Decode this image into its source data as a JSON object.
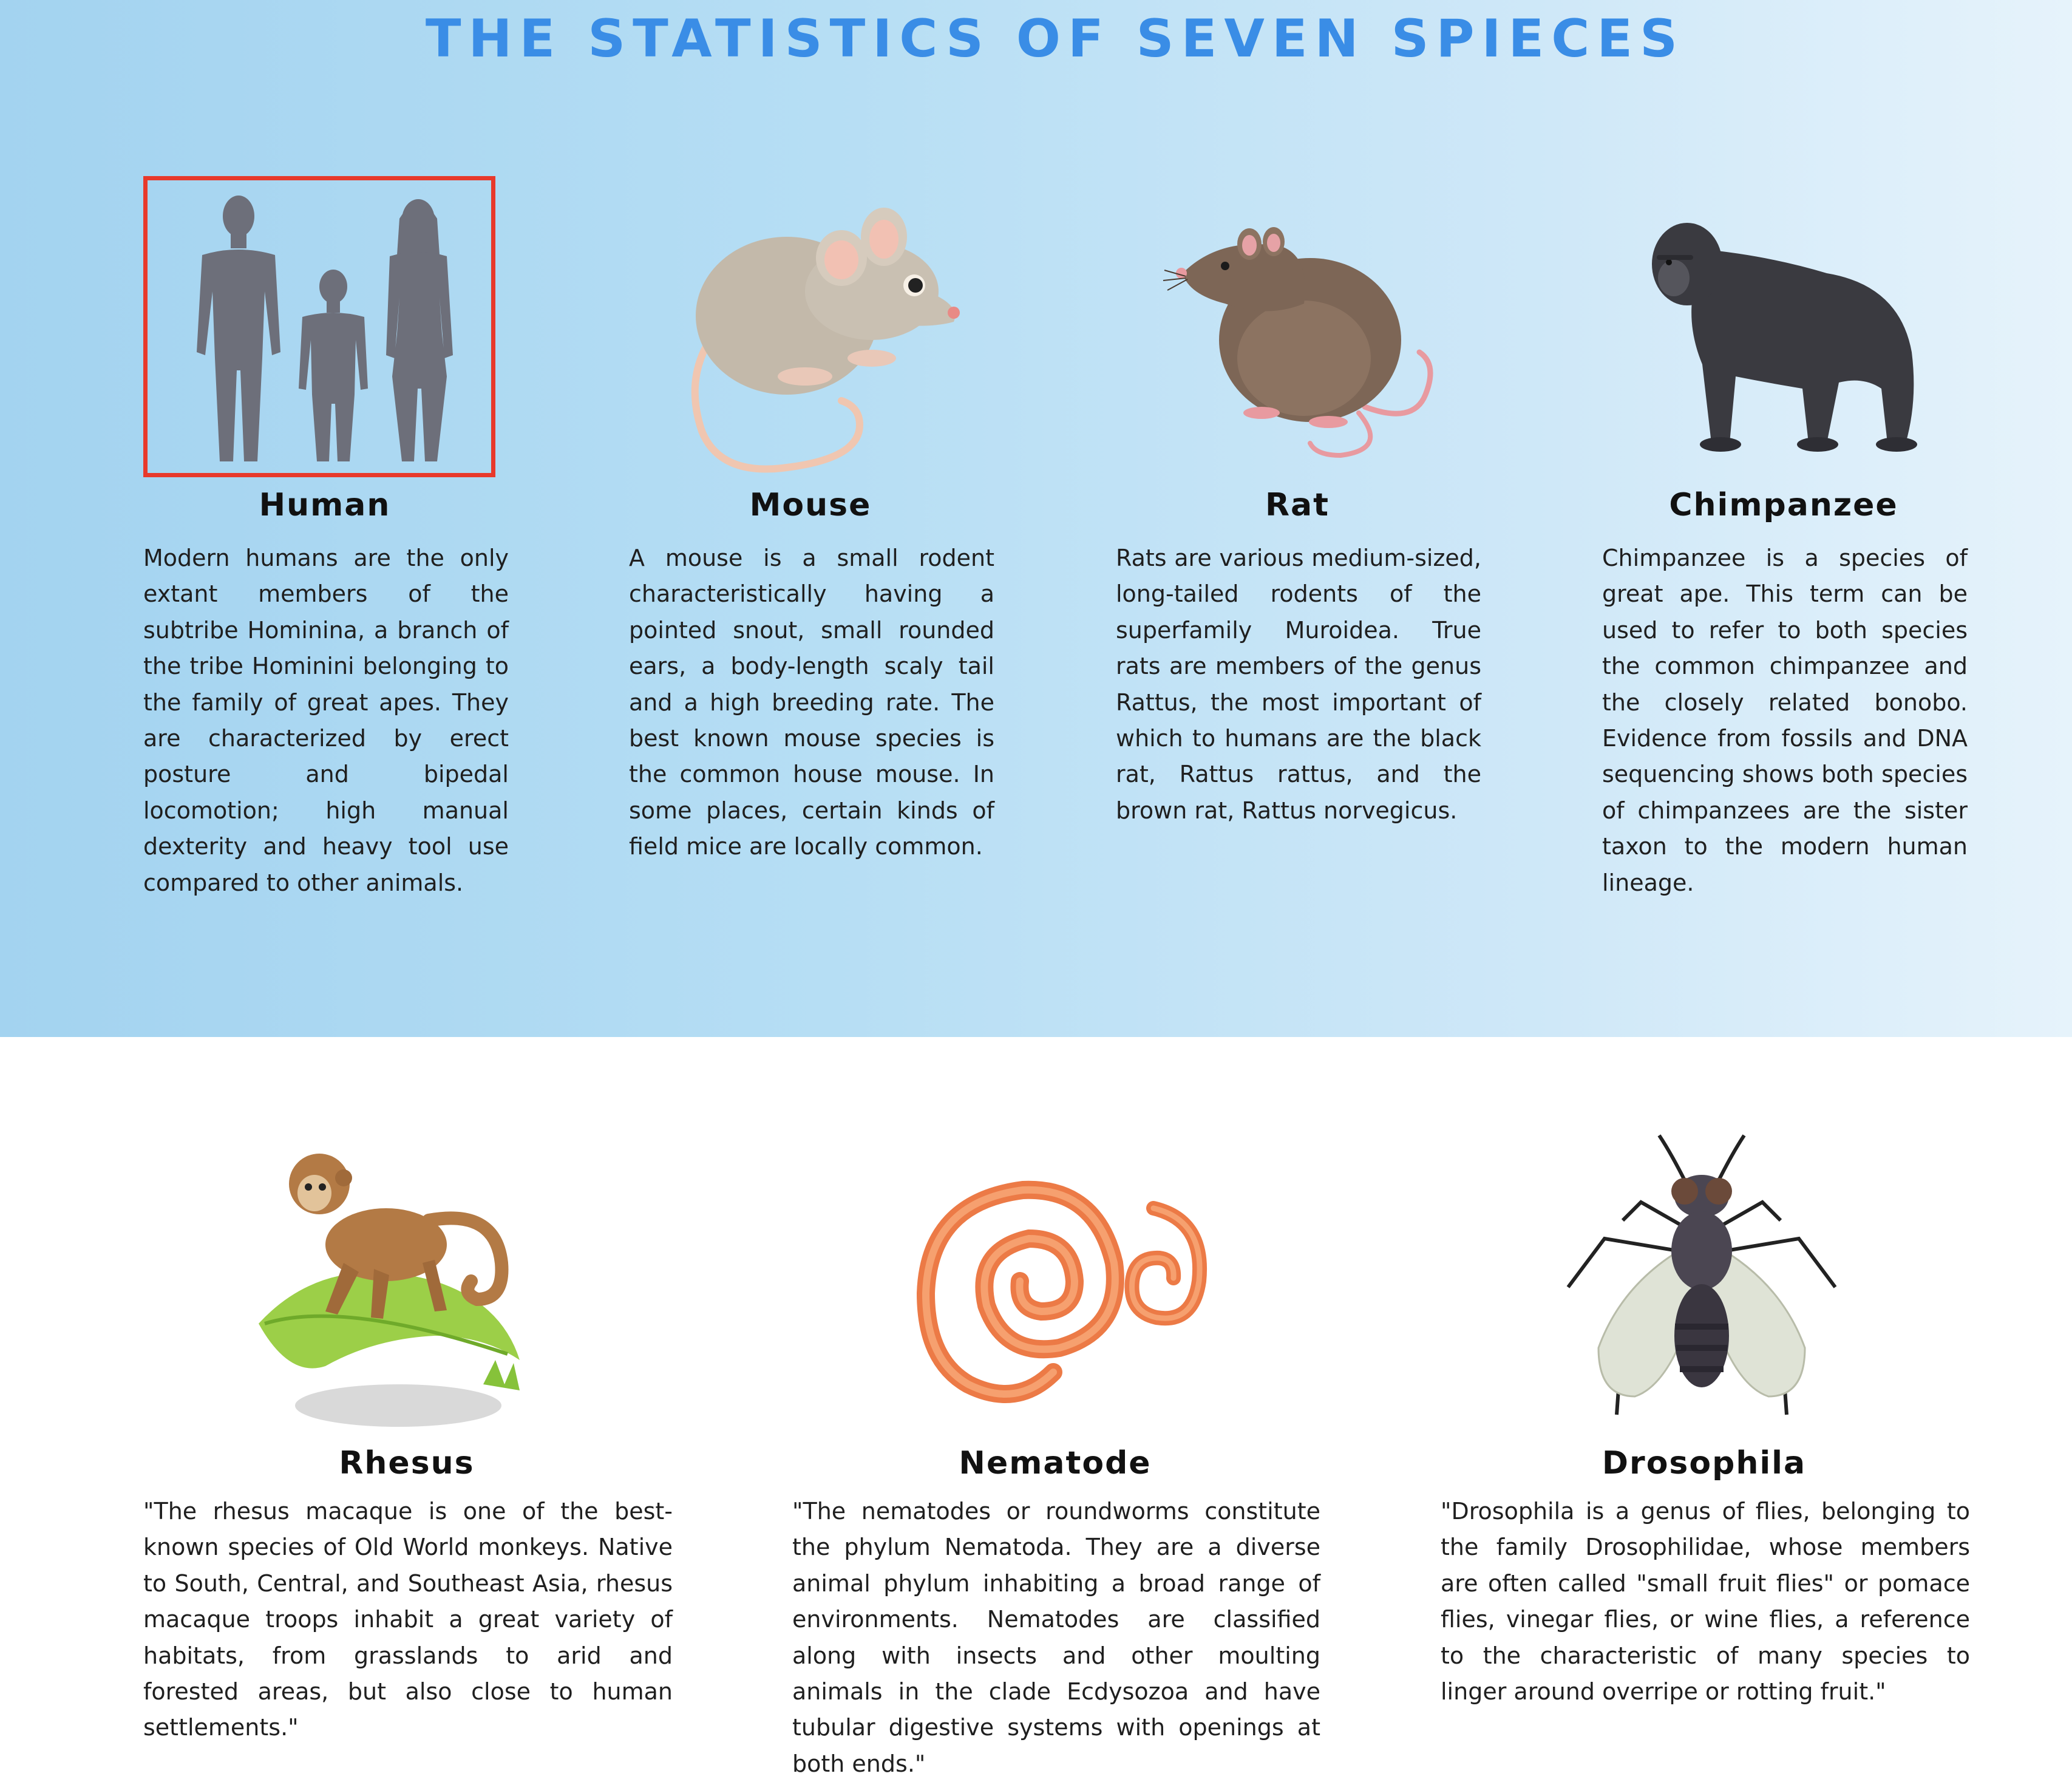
{
  "title": "THE STATISTICS OF SEVEN SPIECES",
  "colors": {
    "title": "#3a8de6",
    "highlight": "#e8392b",
    "band_left": "#a3d3f0",
    "band_right": "#e6f3fb"
  },
  "species": [
    {
      "name": "Human",
      "icon": "human-silhouettes-icon",
      "description": "Modern humans are the only extant members of the subtribe Hominina, a branch of the tribe Hominini belonging to the family of great apes. They are characterized by erect posture and bipedal locomotion; high manual dexterity and heavy tool use compared to other animals.",
      "selected": true
    },
    {
      "name": "Mouse",
      "icon": "mouse-icon",
      "description": "A mouse is a small rodent characteristically having a pointed snout, small rounded ears, a body-length scaly tail and a high breeding rate. The best known mouse species is the common house mouse. In some places, certain kinds of field mice are locally common."
    },
    {
      "name": "Rat",
      "icon": "rat-icon",
      "description": "Rats are various medium-sized, long-tailed rodents of the superfamily Muroidea. True rats are members of the genus Rattus, the most important of which to humans are the black rat, Rattus rattus, and the brown rat, Rattus norvegicus."
    },
    {
      "name": "Chimpanzee",
      "icon": "chimpanzee-icon",
      "description": "Chimpanzee is a species of great ape. This term can be used to refer to both species the common chimpanzee and the closely related bonobo. Evidence from fossils and DNA sequencing shows both species of chimpanzees are the sister taxon to the modern human lineage."
    },
    {
      "name": "Rhesus",
      "icon": "rhesus-monkey-icon",
      "description": "\"The rhesus macaque is one of the best-known species of Old World monkeys. Native to South, Central, and Southeast Asia, rhesus macaque troops inhabit a great variety of habitats, from grasslands to arid and forested areas, but also close to human settlements.\""
    },
    {
      "name": "Nematode",
      "icon": "nematode-worm-icon",
      "description": "\"The nematodes or roundworms constitute the phylum Nematoda. They are a diverse animal phylum inhabiting a broad range of environments. Nematodes are classified along with insects and other moulting animals in the clade Ecdysozoa and have tubular digestive systems with openings at both ends.\""
    },
    {
      "name": "Drosophila",
      "icon": "fruit-fly-icon",
      "description": "\"Drosophila is a genus of flies, belonging to the family Drosophilidae, whose members are often called \"small fruit flies\" or pomace flies, vinegar flies, or wine flies, a reference to the characteristic of many species to linger around overripe or rotting fruit.\""
    }
  ]
}
